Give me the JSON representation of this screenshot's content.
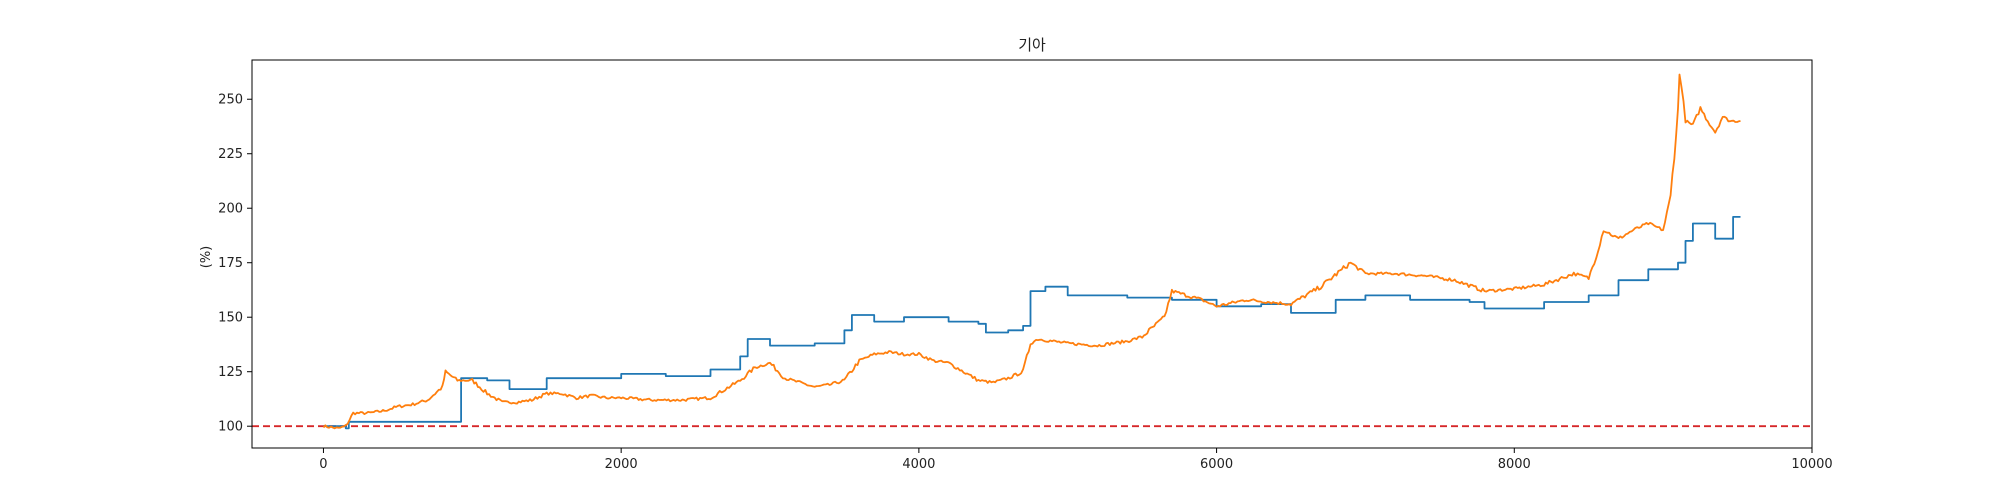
{
  "chart_data": {
    "type": "line",
    "title": "기아",
    "xlabel": "",
    "ylabel": "(%)",
    "xlim": [
      -480,
      10000
    ],
    "ylim": [
      90,
      268
    ],
    "x_ticks": [
      0,
      2000,
      4000,
      6000,
      8000,
      10000
    ],
    "y_ticks": [
      100,
      125,
      150,
      175,
      200,
      225,
      250
    ],
    "grid": false,
    "reference_line": {
      "y": 100,
      "color": "#d62728",
      "style": "dashed"
    },
    "series": [
      {
        "color": "#1f77b4",
        "points": [
          [
            0,
            100
          ],
          [
            150,
            99
          ],
          [
            170,
            102
          ],
          [
            920,
            102
          ],
          [
            925,
            122
          ],
          [
            1100,
            121
          ],
          [
            1250,
            117
          ],
          [
            1500,
            122
          ],
          [
            2000,
            124
          ],
          [
            2300,
            123
          ],
          [
            2600,
            126
          ],
          [
            2800,
            132
          ],
          [
            2850,
            140
          ],
          [
            3000,
            137
          ],
          [
            3300,
            138
          ],
          [
            3500,
            144
          ],
          [
            3550,
            151
          ],
          [
            3700,
            148
          ],
          [
            3900,
            150
          ],
          [
            4200,
            148
          ],
          [
            4400,
            147
          ],
          [
            4450,
            143
          ],
          [
            4600,
            144
          ],
          [
            4700,
            146
          ],
          [
            4750,
            162
          ],
          [
            4850,
            164
          ],
          [
            5000,
            160
          ],
          [
            5400,
            159
          ],
          [
            5700,
            158
          ],
          [
            6000,
            155
          ],
          [
            6300,
            156
          ],
          [
            6500,
            152
          ],
          [
            6800,
            158
          ],
          [
            7000,
            160
          ],
          [
            7300,
            158
          ],
          [
            7700,
            157
          ],
          [
            7800,
            154
          ],
          [
            8200,
            157
          ],
          [
            8500,
            160
          ],
          [
            8700,
            167
          ],
          [
            8900,
            172
          ],
          [
            9100,
            175
          ],
          [
            9150,
            185
          ],
          [
            9200,
            193
          ],
          [
            9350,
            186
          ],
          [
            9450,
            186
          ],
          [
            9470,
            196
          ],
          [
            9520,
            196
          ]
        ]
      },
      {
        "color": "#ff7f0e",
        "points": [
          [
            0,
            100
          ],
          [
            100,
            99
          ],
          [
            150,
            100
          ],
          [
            200,
            106
          ],
          [
            300,
            106
          ],
          [
            400,
            107
          ],
          [
            500,
            109
          ],
          [
            600,
            110
          ],
          [
            700,
            112
          ],
          [
            800,
            118
          ],
          [
            820,
            125
          ],
          [
            900,
            121
          ],
          [
            1000,
            121
          ],
          [
            1100,
            115
          ],
          [
            1200,
            111
          ],
          [
            1300,
            111
          ],
          [
            1400,
            112
          ],
          [
            1500,
            115
          ],
          [
            1600,
            115
          ],
          [
            1700,
            113
          ],
          [
            1800,
            114
          ],
          [
            1900,
            113
          ],
          [
            2000,
            113
          ],
          [
            2200,
            112
          ],
          [
            2400,
            112
          ],
          [
            2600,
            113
          ],
          [
            2700,
            117
          ],
          [
            2800,
            121
          ],
          [
            2900,
            127
          ],
          [
            3000,
            129
          ],
          [
            3100,
            122
          ],
          [
            3200,
            120
          ],
          [
            3300,
            118
          ],
          [
            3400,
            119
          ],
          [
            3500,
            121
          ],
          [
            3600,
            130
          ],
          [
            3700,
            133
          ],
          [
            3800,
            134
          ],
          [
            3900,
            133
          ],
          [
            4000,
            133
          ],
          [
            4100,
            130
          ],
          [
            4200,
            129
          ],
          [
            4300,
            125
          ],
          [
            4400,
            121
          ],
          [
            4500,
            120
          ],
          [
            4600,
            122
          ],
          [
            4700,
            125
          ],
          [
            4750,
            138
          ],
          [
            4800,
            140
          ],
          [
            5000,
            138
          ],
          [
            5200,
            137
          ],
          [
            5400,
            139
          ],
          [
            5500,
            141
          ],
          [
            5650,
            150
          ],
          [
            5700,
            162
          ],
          [
            5900,
            158
          ],
          [
            6000,
            155
          ],
          [
            6200,
            158
          ],
          [
            6500,
            156
          ],
          [
            6700,
            164
          ],
          [
            6900,
            175
          ],
          [
            7000,
            170
          ],
          [
            7200,
            170
          ],
          [
            7400,
            169
          ],
          [
            7600,
            167
          ],
          [
            7800,
            162
          ],
          [
            8000,
            163
          ],
          [
            8200,
            165
          ],
          [
            8400,
            170
          ],
          [
            8500,
            168
          ],
          [
            8550,
            178
          ],
          [
            8600,
            190
          ],
          [
            8700,
            186
          ],
          [
            8800,
            190
          ],
          [
            8900,
            193
          ],
          [
            9000,
            190
          ],
          [
            9050,
            205
          ],
          [
            9100,
            245
          ],
          [
            9110,
            263
          ],
          [
            9150,
            240
          ],
          [
            9200,
            238
          ],
          [
            9250,
            246
          ],
          [
            9300,
            240
          ],
          [
            9350,
            235
          ],
          [
            9400,
            242
          ],
          [
            9450,
            240
          ],
          [
            9520,
            240
          ]
        ]
      }
    ]
  }
}
